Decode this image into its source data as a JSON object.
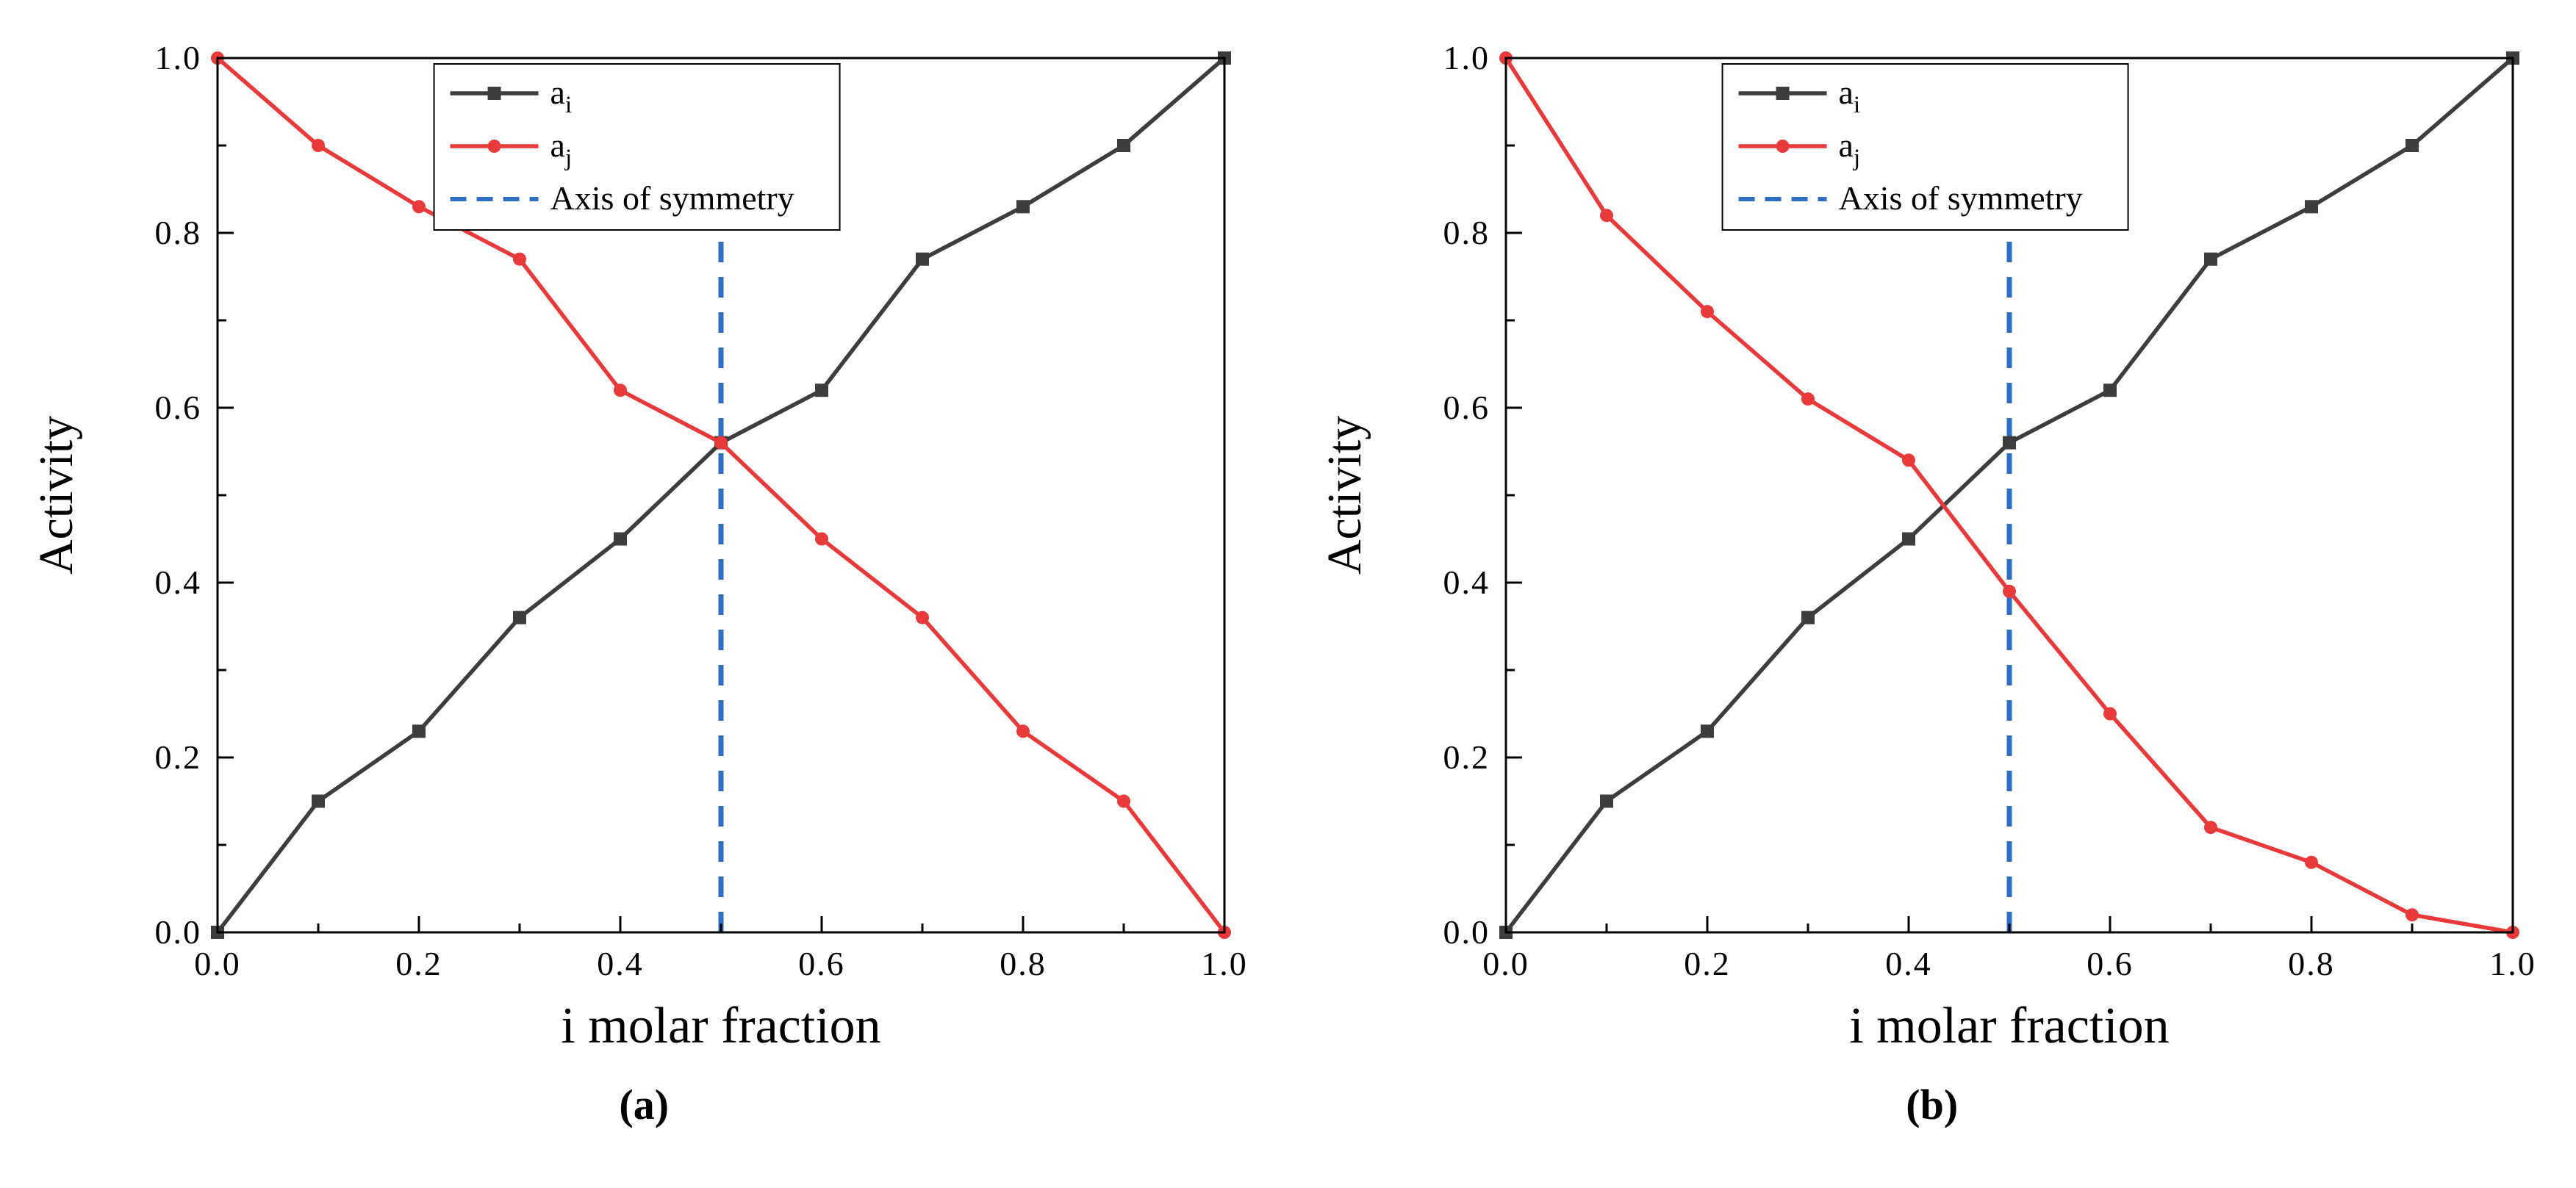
{
  "figure": {
    "background": "#ffffff",
    "panel_labels": [
      "(a)",
      "(b)"
    ]
  },
  "chart_data": [
    {
      "type": "line",
      "panel_label": "(a)",
      "title": "",
      "xlabel": "i molar fraction",
      "ylabel": "Activity",
      "xlim": [
        0,
        1
      ],
      "ylim": [
        0,
        1
      ],
      "xticks": [
        0,
        0.2,
        0.4,
        0.6,
        0.8,
        1.0
      ],
      "xtick_labels": [
        "0.0",
        "0.2",
        "0.4",
        "0.6",
        "0.8",
        "1.0"
      ],
      "yticks": [
        0,
        0.2,
        0.4,
        0.6,
        0.8,
        1.0
      ],
      "ytick_labels": [
        "0.0",
        "0.2",
        "0.4",
        "0.6",
        "0.8",
        "1.0"
      ],
      "minor_xticks": [
        0.1,
        0.3,
        0.5,
        0.7,
        0.9
      ],
      "minor_yticks": [
        0.1,
        0.3,
        0.5,
        0.7,
        0.9
      ],
      "grid": false,
      "x": [
        0,
        0.1,
        0.2,
        0.3,
        0.4,
        0.5,
        0.6,
        0.7,
        0.8,
        0.9,
        1.0
      ],
      "series": [
        {
          "name": "ai",
          "label_base": "a",
          "label_sub": "i",
          "color": "#3d3d3d",
          "marker": "square",
          "values": [
            0,
            0.15,
            0.23,
            0.36,
            0.45,
            0.56,
            0.62,
            0.77,
            0.83,
            0.9,
            1.0
          ]
        },
        {
          "name": "aj",
          "label_base": "a",
          "label_sub": "j",
          "color": "#e8393b",
          "marker": "circle",
          "values": [
            1.0,
            0.9,
            0.83,
            0.77,
            0.62,
            0.56,
            0.45,
            0.36,
            0.23,
            0.15,
            0
          ]
        }
      ],
      "annotations": [
        {
          "type": "vline",
          "x": 0.5,
          "y0": 0,
          "y1": 0.985,
          "label": "Axis of symmetry",
          "color": "#2e6ec6",
          "style": "dashed"
        }
      ],
      "legend": {
        "position": "top-inset",
        "entries": [
          "ai",
          "aj",
          "Axis of symmetry"
        ]
      }
    },
    {
      "type": "line",
      "panel_label": "(b)",
      "title": "",
      "xlabel": "i molar fraction",
      "ylabel": "Activity",
      "xlim": [
        0,
        1
      ],
      "ylim": [
        0,
        1
      ],
      "xticks": [
        0,
        0.2,
        0.4,
        0.6,
        0.8,
        1.0
      ],
      "xtick_labels": [
        "0.0",
        "0.2",
        "0.4",
        "0.6",
        "0.8",
        "1.0"
      ],
      "yticks": [
        0,
        0.2,
        0.4,
        0.6,
        0.8,
        1.0
      ],
      "ytick_labels": [
        "0.0",
        "0.2",
        "0.4",
        "0.6",
        "0.8",
        "1.0"
      ],
      "minor_xticks": [
        0.1,
        0.3,
        0.5,
        0.7,
        0.9
      ],
      "minor_yticks": [
        0.1,
        0.3,
        0.5,
        0.7,
        0.9
      ],
      "grid": false,
      "x": [
        0,
        0.1,
        0.2,
        0.3,
        0.4,
        0.5,
        0.6,
        0.7,
        0.8,
        0.9,
        1.0
      ],
      "series": [
        {
          "name": "ai",
          "label_base": "a",
          "label_sub": "i",
          "color": "#3d3d3d",
          "marker": "square",
          "values": [
            0,
            0.15,
            0.23,
            0.36,
            0.45,
            0.56,
            0.62,
            0.77,
            0.83,
            0.9,
            1.0
          ]
        },
        {
          "name": "aj",
          "label_base": "a",
          "label_sub": "j",
          "color": "#e8393b",
          "marker": "circle",
          "values": [
            1.0,
            0.82,
            0.71,
            0.61,
            0.54,
            0.39,
            0.25,
            0.12,
            0.08,
            0.02,
            0
          ]
        }
      ],
      "annotations": [
        {
          "type": "vline",
          "x": 0.5,
          "y0": 0,
          "y1": 0.82,
          "label": "Axis of symmetry",
          "color": "#2e6ec6",
          "style": "dashed"
        }
      ],
      "legend": {
        "position": "top-inset",
        "entries": [
          "ai",
          "aj",
          "Axis of symmetry"
        ]
      }
    }
  ]
}
